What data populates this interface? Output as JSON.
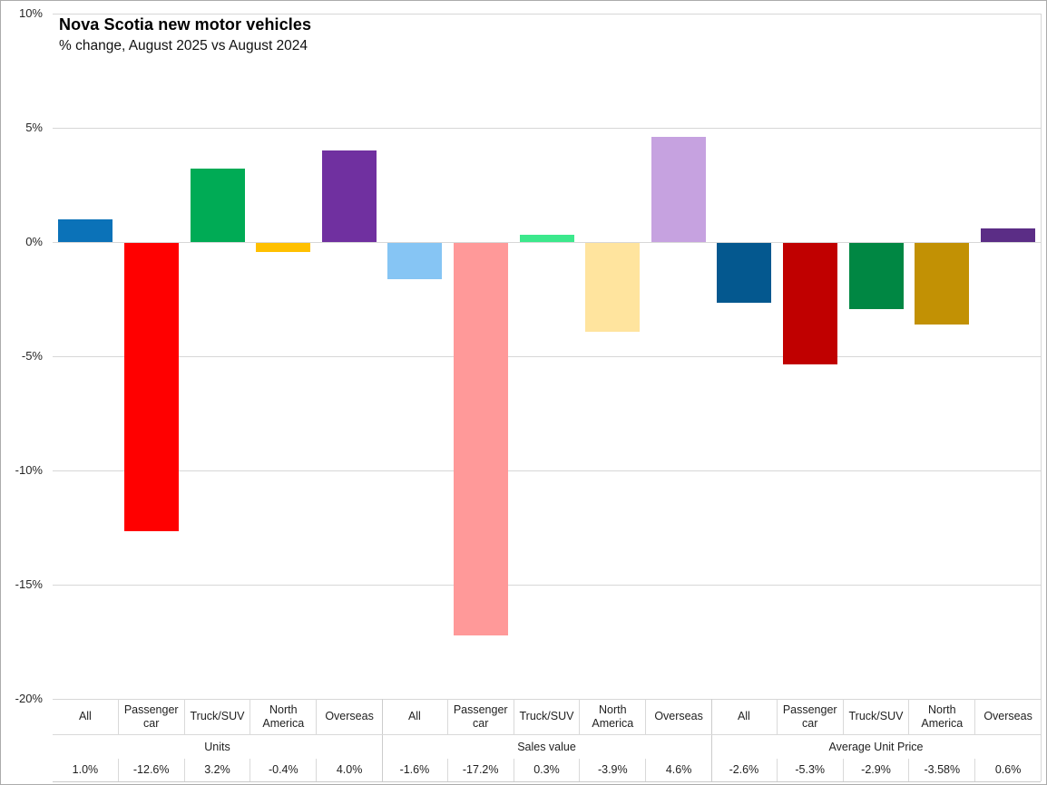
{
  "header": {
    "title": "Nova Scotia new motor vehicles",
    "subtitle": "% change, August 2025 vs August 2024"
  },
  "chart_data": {
    "type": "bar",
    "title": "Nova Scotia new motor vehicles",
    "subtitle": "% change, August 2025 vs August 2024",
    "categories": [
      "All",
      "Passenger car",
      "Truck/SUV",
      "North America",
      "Overseas"
    ],
    "series": [
      {
        "name": "Units",
        "values": [
          1.0,
          -12.6,
          3.2,
          -0.4,
          4.0
        ],
        "value_labels": [
          "1.0%",
          "-12.6%",
          "3.2%",
          "-0.4%",
          "4.0%"
        ],
        "colors": [
          "#0b72b8",
          "#ff0000",
          "#00ab55",
          "#ffc000",
          "#7030a0"
        ]
      },
      {
        "name": "Sales value",
        "values": [
          -1.6,
          -17.2,
          0.3,
          -3.9,
          4.6
        ],
        "value_labels": [
          "-1.6%",
          "-17.2%",
          "0.3%",
          "-3.9%",
          "4.6%"
        ],
        "colors": [
          "#86c5f4",
          "#ff9999",
          "#3ce88c",
          "#ffe49e",
          "#c6a2e0"
        ]
      },
      {
        "name": "Average Unit Price",
        "values": [
          -2.6,
          -5.3,
          -2.9,
          -3.58,
          0.6
        ],
        "value_labels": [
          "-2.6%",
          "-5.3%",
          "-2.9%",
          "-3.58%",
          "0.6%"
        ],
        "colors": [
          "#04588f",
          "#c00000",
          "#008743",
          "#c29104",
          "#5b2d86"
        ]
      }
    ],
    "ylim": [
      -20,
      10
    ],
    "yticks": [
      10,
      5,
      0,
      -5,
      -10,
      -15,
      -20
    ],
    "ytick_labels": [
      "10%",
      "5%",
      "0%",
      "-5%",
      "-10%",
      "-15%",
      "-20%"
    ],
    "grid": true,
    "legend_position": "none",
    "data_table_below": true
  }
}
